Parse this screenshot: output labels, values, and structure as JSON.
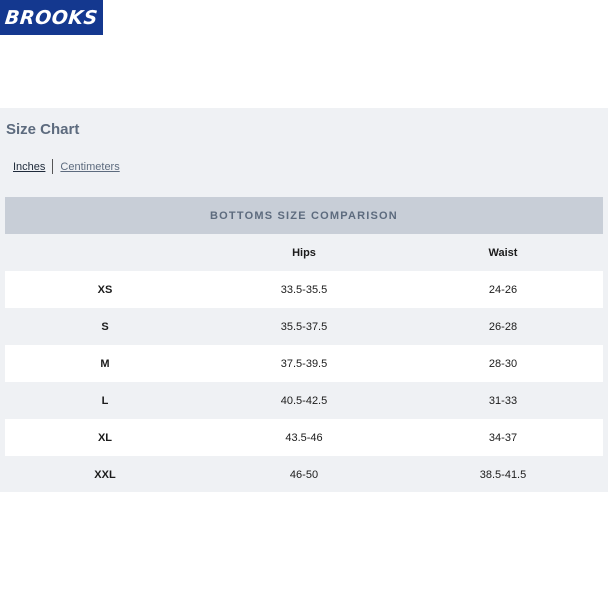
{
  "brand": {
    "logo_text": "BROOKS",
    "color": "#14388f"
  },
  "size_chart": {
    "title": "Size Chart",
    "units": {
      "inches_label": "Inches",
      "centimeters_label": "Centimeters",
      "selected": "Inches"
    },
    "comparison_title": "BOTTOMS SIZE COMPARISON",
    "columns": [
      "",
      "Hips",
      "Waist"
    ],
    "rows": [
      {
        "size": "XS",
        "hips": "33.5-35.5",
        "waist": "24-26"
      },
      {
        "size": "S",
        "hips": "35.5-37.5",
        "waist": "26-28"
      },
      {
        "size": "M",
        "hips": "37.5-39.5",
        "waist": "28-30"
      },
      {
        "size": "L",
        "hips": "40.5-42.5",
        "waist": "31-33"
      },
      {
        "size": "XL",
        "hips": "43.5-46",
        "waist": "34-37"
      },
      {
        "size": "XXL",
        "hips": "46-50",
        "waist": "38.5-41.5"
      }
    ]
  }
}
